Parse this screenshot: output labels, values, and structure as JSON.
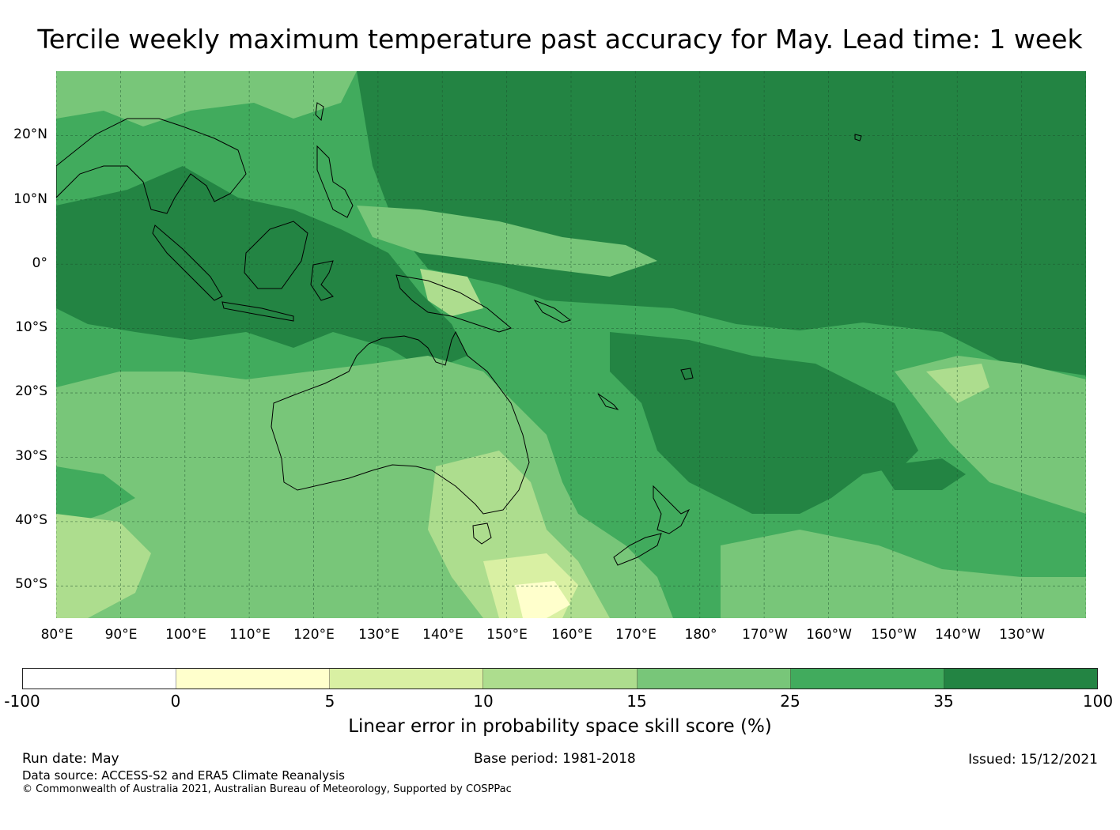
{
  "title": "Tercile weekly maximum temperature past accuracy for May. Lead time: 1 week",
  "map": {
    "lat_labels": [
      "20°N",
      "10°N",
      "0°",
      "10°S",
      "20°S",
      "30°S",
      "40°S",
      "50°S"
    ],
    "lon_labels": [
      "80°E",
      "90°E",
      "100°E",
      "110°E",
      "120°E",
      "130°E",
      "140°E",
      "150°E",
      "160°E",
      "170°E",
      "180°",
      "170°W",
      "160°W",
      "150°W",
      "140°W",
      "130°W"
    ],
    "lat_range": [
      -55,
      30
    ],
    "lon_range": [
      80,
      240
    ]
  },
  "colorbar": {
    "ticks": [
      "-100",
      "0",
      "5",
      "10",
      "15",
      "25",
      "35",
      "100"
    ],
    "colors": [
      "#ffffff",
      "#ffffcc",
      "#d9f0a3",
      "#addd8e",
      "#78c679",
      "#41ab5d",
      "#238443"
    ],
    "label": "Linear error in probability space skill score (%)"
  },
  "footer": {
    "run_date": "Run date: May",
    "base_period": "Base period: 1981-2018",
    "issued": "Issued: 15/12/2021",
    "data_source": "Data source: ACCESS-S2 and ERA5 Climate Reanalysis",
    "copyright": "© Commonwealth of Australia 2021, Australian Bureau of Meteorology, Supported by COSPPac"
  }
}
